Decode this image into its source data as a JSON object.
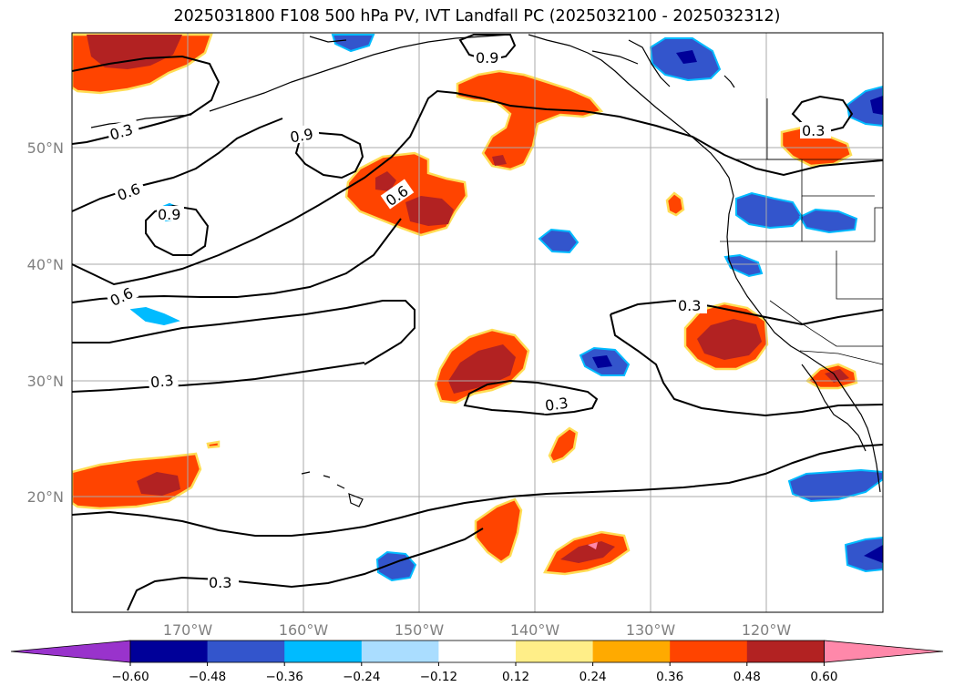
{
  "title": "2025031800 F108 500 hPa PV, IVT Landfall PC (2025032100 - 2025032312)",
  "lon_ticks": [
    "170°W",
    "160°W",
    "150°W",
    "140°W",
    "130°W",
    "120°W"
  ],
  "lat_ticks": [
    "50°N",
    "40°N",
    "30°N",
    "20°N"
  ],
  "colorbar": {
    "colors": [
      "#9933cc",
      "#000099",
      "#3355cc",
      "#00bbff",
      "#aaddff",
      "#ffffff",
      "#ffee88",
      "#ffaa00",
      "#ff4400",
      "#b22222",
      "#ff88aa"
    ],
    "labels": [
      "−0.60",
      "−0.48",
      "−0.36",
      "−0.24",
      "−0.12",
      "0.12",
      "0.24",
      "0.36",
      "0.48",
      "0.60"
    ]
  },
  "contour_labels": {
    "c1": "0.9",
    "c2": "0.3",
    "c3": "0.9",
    "c4": "0.6",
    "c5": "0.9",
    "c6": "0.6",
    "c7": "0.6",
    "c8": "0.3",
    "c9": "0.3",
    "c10": "0.3",
    "c11": "0.3",
    "c12": "0.3"
  }
}
